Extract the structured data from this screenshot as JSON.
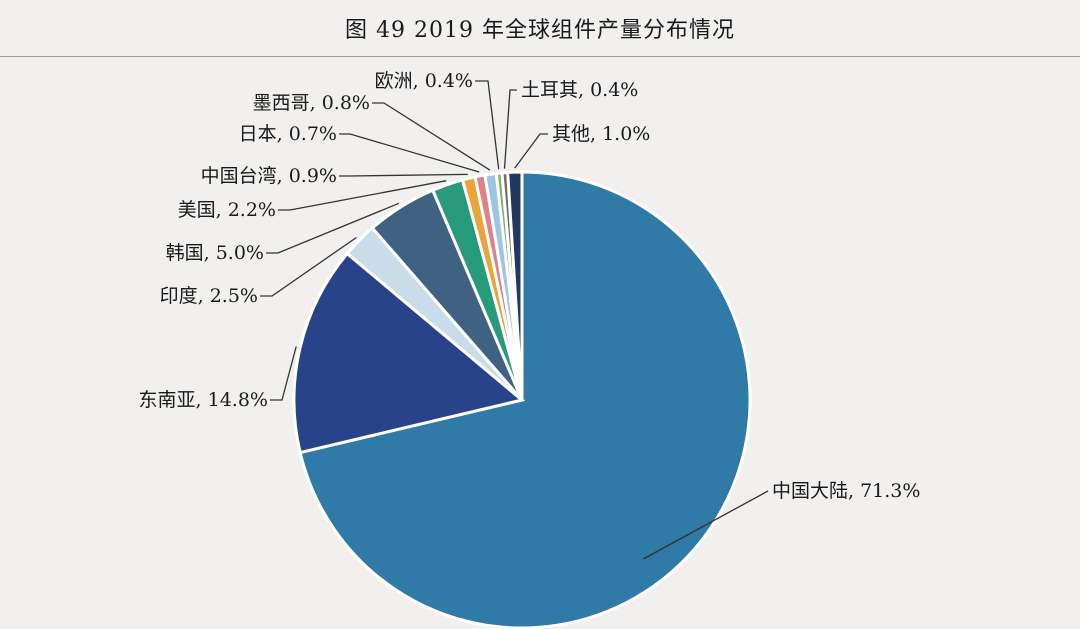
{
  "chart_data": {
    "type": "pie",
    "title": "图 49 2019 年全球组件产量分布情况",
    "series": [
      {
        "name": "",
        "slices": [
          {
            "label": "中国大陆, 71.3%",
            "value": 71.3,
            "color": "#2f7aa6"
          },
          {
            "label": "东南亚, 14.8%",
            "value": 14.8,
            "color": "#28438a"
          },
          {
            "label": "印度, 2.5%",
            "value": 2.5,
            "color": "#c8dcea"
          },
          {
            "label": "韩国, 5.0%",
            "value": 5.0,
            "color": "#3f6283"
          },
          {
            "label": "美国, 2.2%",
            "value": 2.2,
            "color": "#279a7a"
          },
          {
            "label": "中国台湾, 0.9%",
            "value": 0.9,
            "color": "#e9a43a"
          },
          {
            "label": "日本, 0.7%",
            "value": 0.7,
            "color": "#e0808a"
          },
          {
            "label": "墨西哥, 0.8%",
            "value": 0.8,
            "color": "#9fc4df"
          },
          {
            "label": "欧洲, 0.4%",
            "value": 0.4,
            "color": "#7cb56a"
          },
          {
            "label": "土耳其, 0.4%",
            "value": 0.4,
            "color": "#6b6b6b"
          },
          {
            "label": "其他, 1.0%",
            "value": 1.0,
            "color": "#1f3a5c"
          }
        ]
      }
    ],
    "legend": "none"
  }
}
